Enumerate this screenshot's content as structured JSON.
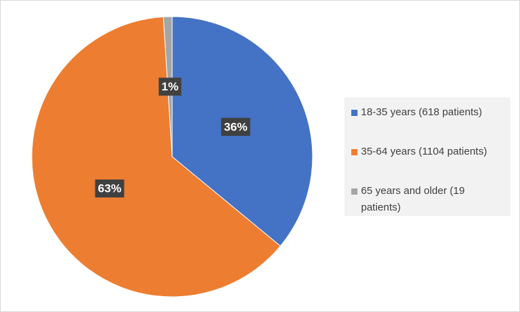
{
  "chart_data": {
    "type": "pie",
    "categories": [
      "18-35 years (618 patients)",
      "35-64 years (1104 patients)",
      "65 years and older (19 patients)"
    ],
    "values": [
      36,
      63,
      1
    ],
    "value_labels": [
      "36%",
      "63%",
      "1%"
    ],
    "colors": [
      "#4472c4",
      "#ed7d31",
      "#a5a5a5"
    ],
    "legend": "right"
  }
}
